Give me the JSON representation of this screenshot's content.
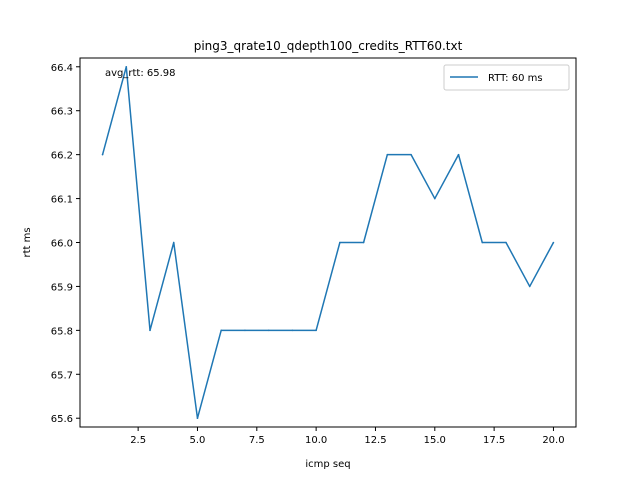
{
  "chart_data": {
    "type": "line",
    "title": "ping3_qrate10_qdepth100_credits_RTT60.txt",
    "xlabel": "icmp seq",
    "ylabel": "rtt ms",
    "annotation": "avg_rtt: 65.98",
    "xlim": [
      0.05,
      20.95
    ],
    "ylim": [
      65.58,
      66.42
    ],
    "x_ticks": [
      2.5,
      5.0,
      7.5,
      10.0,
      12.5,
      15.0,
      17.5,
      20.0
    ],
    "x_tick_labels": [
      "2.5",
      "5.0",
      "7.5",
      "10.0",
      "12.5",
      "15.0",
      "17.5",
      "20.0"
    ],
    "y_ticks": [
      65.6,
      65.7,
      65.8,
      65.9,
      66.0,
      66.1,
      66.2,
      66.3,
      66.4
    ],
    "y_tick_labels": [
      "65.6",
      "65.7",
      "65.8",
      "65.9",
      "66.0",
      "66.1",
      "66.2",
      "66.3",
      "66.4"
    ],
    "grid": false,
    "legend_position": "top-right",
    "series": [
      {
        "name": "RTT: 60 ms",
        "color": "#1f77b4",
        "x": [
          1,
          2,
          3,
          4,
          5,
          6,
          7,
          8,
          9,
          10,
          11,
          12,
          13,
          14,
          15,
          16,
          17,
          18,
          19,
          20
        ],
        "y": [
          66.2,
          66.4,
          65.8,
          66.0,
          65.6,
          65.8,
          65.8,
          65.8,
          65.8,
          65.8,
          66.0,
          66.0,
          66.2,
          66.2,
          66.1,
          66.2,
          66.0,
          66.0,
          65.9,
          66.0
        ]
      }
    ]
  }
}
